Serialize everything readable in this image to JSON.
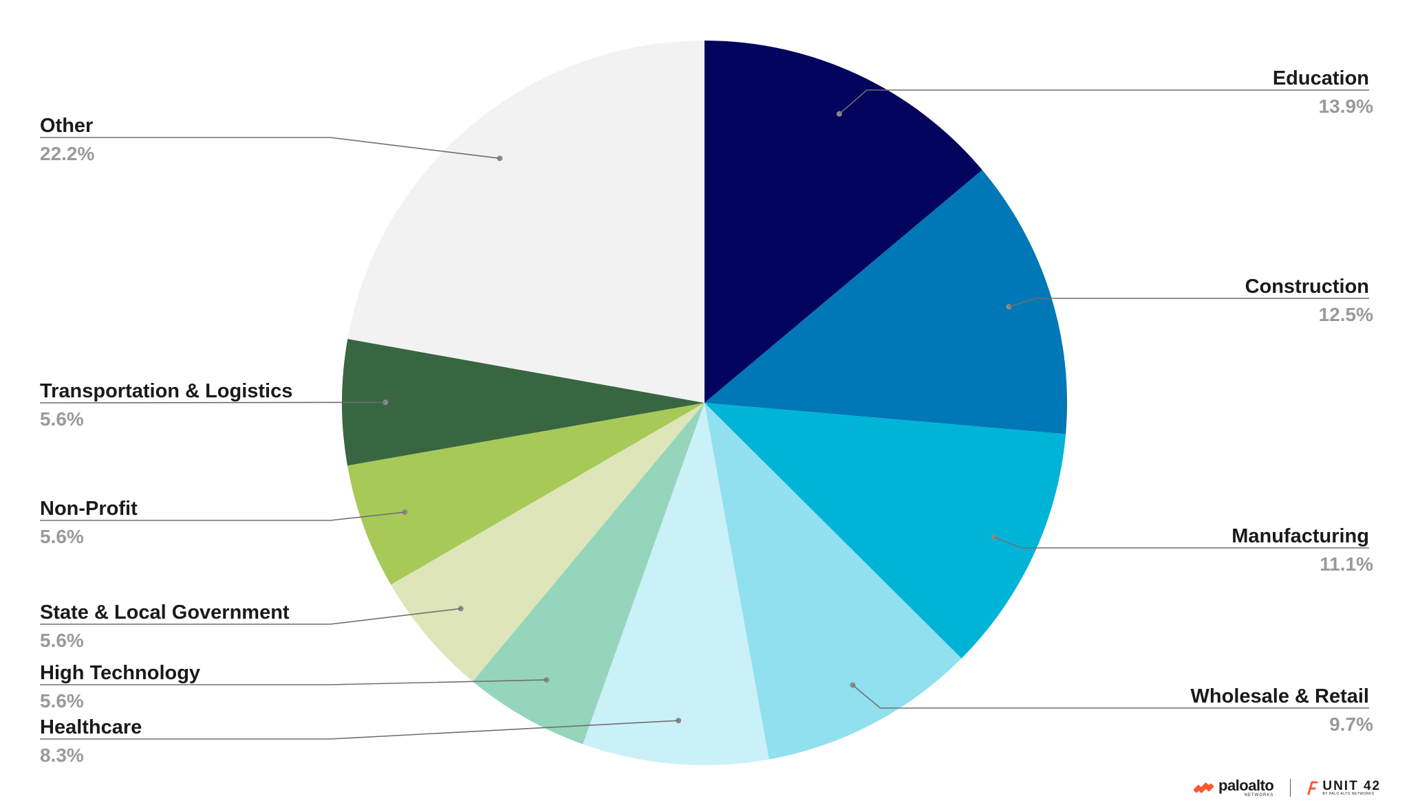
{
  "chart_data": {
    "type": "pie",
    "title": "",
    "start_angle_deg": 0,
    "direction": "clockwise",
    "slices": [
      {
        "label": "Education",
        "value": 13.9,
        "display": "13.9%",
        "color": "#03045e",
        "side": "right"
      },
      {
        "label": "Construction",
        "value": 12.5,
        "display": "12.5%",
        "color": "#0077b6",
        "side": "right"
      },
      {
        "label": "Manufacturing",
        "value": 11.1,
        "display": "11.1%",
        "color": "#00b4d8",
        "side": "right"
      },
      {
        "label": "Wholesale & Retail",
        "value": 9.7,
        "display": "9.7%",
        "color": "#90e0ef",
        "side": "right"
      },
      {
        "label": "Healthcare",
        "value": 8.3,
        "display": "8.3%",
        "color": "#caf0f8",
        "side": "left"
      },
      {
        "label": "High Technology",
        "value": 5.6,
        "display": "5.6%",
        "color": "#95d5bc",
        "side": "left"
      },
      {
        "label": "State & Local Government",
        "value": 5.6,
        "display": "5.6%",
        "color": "#dee5b8",
        "side": "left"
      },
      {
        "label": "Non-Profit",
        "value": 5.6,
        "display": "5.6%",
        "color": "#a7c957",
        "side": "left"
      },
      {
        "label": "Transportation & Logistics",
        "value": 5.6,
        "display": "5.6%",
        "color": "#386641",
        "side": "left"
      },
      {
        "label": "Other",
        "value": 22.2,
        "display": "22.2%",
        "color": "#f2f2f2",
        "side": "left"
      }
    ],
    "legend": "none"
  },
  "branding": {
    "paloalto_word": "paloalto",
    "paloalto_sub": "NETWORKS",
    "unit42_word": "UNIT 42",
    "unit42_sub": "BY PALO ALTO NETWORKS",
    "brand_color": "#fa582d"
  }
}
